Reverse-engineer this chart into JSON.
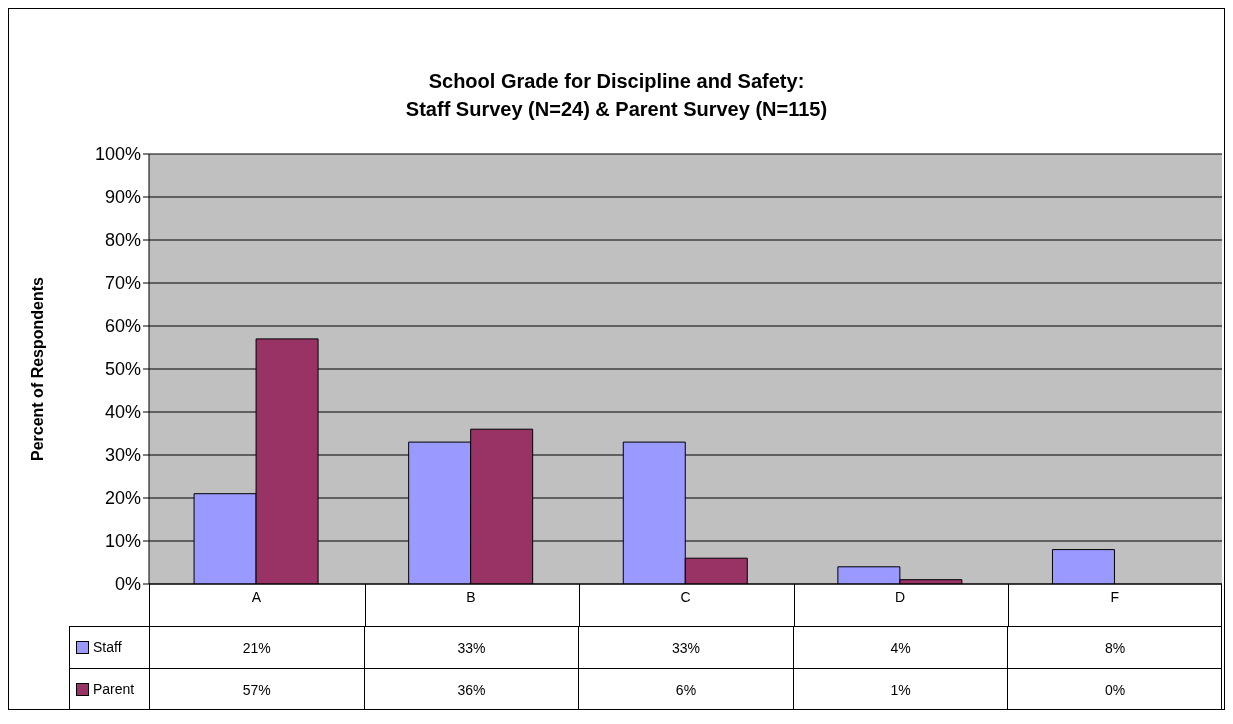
{
  "chart_data": {
    "type": "bar",
    "title": "School Grade for Discipline and Safety:\nStaff Survey (N=24) & Parent Survey (N=115)",
    "ylabel": "Percent of Respondents",
    "categories": [
      "A",
      "B",
      "C",
      "D",
      "F"
    ],
    "series": [
      {
        "name": "Staff",
        "color": "#9999ff",
        "values": [
          21,
          33,
          33,
          4,
          8
        ],
        "value_labels": [
          "21%",
          "33%",
          "33%",
          "4%",
          "8%"
        ]
      },
      {
        "name": "Parent",
        "color": "#993366",
        "values": [
          57,
          36,
          6,
          1,
          0
        ],
        "value_labels": [
          "57%",
          "36%",
          "6%",
          "1%",
          "0%"
        ]
      }
    ],
    "ylim": [
      0,
      100
    ],
    "yticks": [
      {
        "value": 0,
        "label": "0%"
      },
      {
        "value": 10,
        "label": "10%"
      },
      {
        "value": 20,
        "label": "20%"
      },
      {
        "value": 30,
        "label": "30%"
      },
      {
        "value": 40,
        "label": "40%"
      },
      {
        "value": 50,
        "label": "50%"
      },
      {
        "value": 60,
        "label": "60%"
      },
      {
        "value": 70,
        "label": "70%"
      },
      {
        "value": 80,
        "label": "80%"
      },
      {
        "value": 90,
        "label": "90%"
      },
      {
        "value": 100,
        "label": "100%"
      }
    ],
    "grid": "y",
    "legend": "bottom left"
  }
}
